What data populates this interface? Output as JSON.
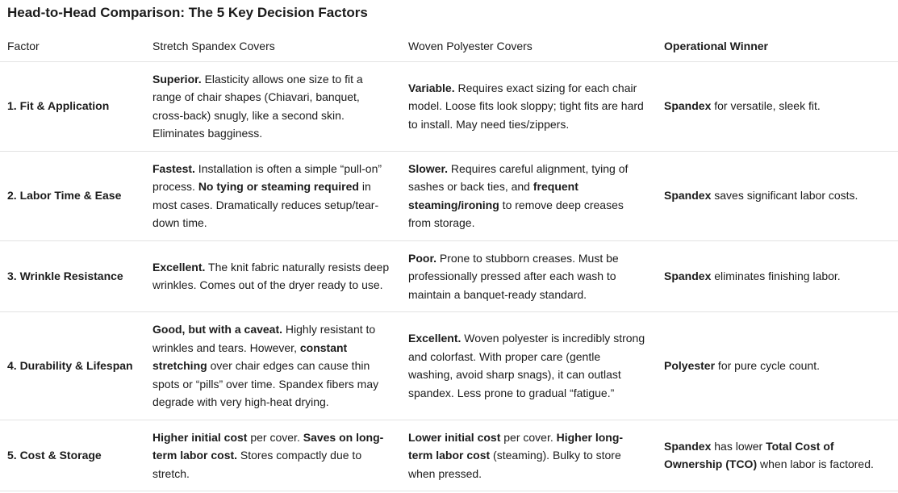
{
  "title": "Head-to-Head Comparison: The 5 Key Decision Factors",
  "table": {
    "header": [
      "Factor",
      "Stretch Spandex Covers",
      "Woven Polyester Covers",
      "Operational Winner"
    ],
    "rows": [
      [
        "1. Fit & Application",
        [
          {
            "text": "Superior.",
            "bold": true
          },
          {
            "text": " Elasticity allows one size to fit a range of chair shapes (Chiavari, banquet, cross-back) snugly, like a second skin. Eliminates bagginess."
          }
        ],
        [
          {
            "text": "Variable.",
            "bold": true
          },
          {
            "text": " Requires exact sizing for each chair model. Loose fits look sloppy; tight fits are hard to install. May need ties/zippers."
          }
        ],
        [
          {
            "text": "Spandex",
            "bold": true
          },
          {
            "text": " for versatile, sleek fit."
          }
        ]
      ],
      [
        "2. Labor Time & Ease",
        [
          {
            "text": "Fastest.",
            "bold": true
          },
          {
            "text": " Installation is often a simple “pull-on” process. "
          },
          {
            "text": "No tying or steaming required",
            "bold": true
          },
          {
            "text": " in most cases. Dramatically reduces setup/tear-down time."
          }
        ],
        [
          {
            "text": "Slower.",
            "bold": true
          },
          {
            "text": " Requires careful alignment, tying of sashes or back ties, and "
          },
          {
            "text": "frequent steaming/ironing",
            "bold": true
          },
          {
            "text": " to remove deep creases from storage."
          }
        ],
        [
          {
            "text": "Spandex",
            "bold": true
          },
          {
            "text": " saves significant labor costs."
          }
        ]
      ],
      [
        "3. Wrinkle Resistance",
        [
          {
            "text": "Excellent.",
            "bold": true
          },
          {
            "text": " The knit fabric naturally resists deep wrinkles. Comes out of the dryer ready to use."
          }
        ],
        [
          {
            "text": "Poor.",
            "bold": true
          },
          {
            "text": " Prone to stubborn creases. Must be professionally pressed after each wash to maintain a banquet-ready standard."
          }
        ],
        [
          {
            "text": "Spandex",
            "bold": true
          },
          {
            "text": " eliminates finishing labor."
          }
        ]
      ],
      [
        "4. Durability & Lifespan",
        [
          {
            "text": "Good, but with a caveat.",
            "bold": true
          },
          {
            "text": " Highly resistant to wrinkles and tears. However, "
          },
          {
            "text": "constant stretching",
            "bold": true
          },
          {
            "text": " over chair edges can cause thin spots or “pills” over time. Spandex fibers may degrade with very high-heat drying."
          }
        ],
        [
          {
            "text": "Excellent.",
            "bold": true
          },
          {
            "text": " Woven polyester is incredibly strong and colorfast. With proper care (gentle washing, avoid sharp snags), it can outlast spandex. Less prone to gradual “fatigue.”"
          }
        ],
        [
          {
            "text": "Polyester",
            "bold": true
          },
          {
            "text": " for pure cycle count."
          }
        ]
      ],
      [
        "5. Cost & Storage",
        [
          {
            "text": "Higher initial cost",
            "bold": true
          },
          {
            "text": " per cover. "
          },
          {
            "text": "Saves on long-term labor cost.",
            "bold": true
          },
          {
            "text": " Stores compactly due to stretch."
          }
        ],
        [
          {
            "text": "Lower initial cost",
            "bold": true
          },
          {
            "text": " per cover. "
          },
          {
            "text": "Higher long-term labor cost",
            "bold": true
          },
          {
            "text": " (steaming). Bulky to store when pressed."
          }
        ],
        [
          {
            "text": "Spandex",
            "bold": true
          },
          {
            "text": " has lower "
          },
          {
            "text": "Total Cost of Ownership (TCO)",
            "bold": true
          },
          {
            "text": " when labor is factored."
          }
        ]
      ]
    ]
  }
}
